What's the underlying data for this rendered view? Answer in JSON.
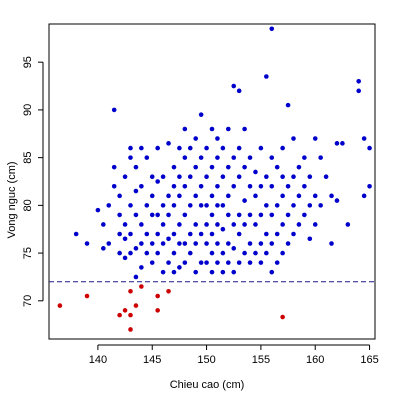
{
  "chart_data": {
    "type": "scatter",
    "title": "",
    "xlabel": "Chieu cao (cm)",
    "ylabel": "Vong nguc (cm)",
    "xlim": [
      135.5,
      165.5
    ],
    "ylim": [
      66,
      99
    ],
    "x_ticks": [
      140,
      145,
      150,
      155,
      160,
      165
    ],
    "y_ticks": [
      70,
      75,
      80,
      85,
      90,
      95
    ],
    "x_tick_labels": [
      "140",
      "145",
      "150",
      "155",
      "160",
      "165"
    ],
    "y_tick_labels": [
      "70",
      "75",
      "80",
      "85",
      "90",
      "95"
    ],
    "grid": false,
    "threshold_line": {
      "y": 72,
      "style": "dashed",
      "color": "#1a1a8c"
    },
    "colors": {
      "above": "#0000cc",
      "below": "#cc0000",
      "axes": "#000000"
    },
    "series": [
      {
        "group": "above",
        "color": "#0000cc",
        "points": [
          [
            138,
            77
          ],
          [
            139,
            76
          ],
          [
            140,
            79.5
          ],
          [
            140.5,
            75.5
          ],
          [
            140.5,
            78
          ],
          [
            141,
            76
          ],
          [
            141,
            80
          ],
          [
            141.5,
            82
          ],
          [
            141.5,
            84
          ],
          [
            141.5,
            90
          ],
          [
            142,
            75
          ],
          [
            142,
            77
          ],
          [
            142,
            79
          ],
          [
            142,
            81
          ],
          [
            142.5,
            74.5
          ],
          [
            142.5,
            76.5
          ],
          [
            142.5,
            78
          ],
          [
            142.5,
            83
          ],
          [
            143,
            75
          ],
          [
            143,
            77
          ],
          [
            143,
            80
          ],
          [
            143,
            85
          ],
          [
            143,
            86
          ],
          [
            143.5,
            72.5
          ],
          [
            143.5,
            75.5
          ],
          [
            143.5,
            79
          ],
          [
            143.5,
            81.5
          ],
          [
            143.5,
            84
          ],
          [
            144,
            73.5
          ],
          [
            144,
            76
          ],
          [
            144,
            78
          ],
          [
            144,
            82
          ],
          [
            144,
            86
          ],
          [
            144.5,
            75
          ],
          [
            144.5,
            77
          ],
          [
            144.5,
            80
          ],
          [
            144.5,
            85
          ],
          [
            145,
            74
          ],
          [
            145,
            76
          ],
          [
            145,
            79
          ],
          [
            145,
            81
          ],
          [
            145,
            83
          ],
          [
            145.5,
            75
          ],
          [
            145.5,
            77
          ],
          [
            145.5,
            79
          ],
          [
            145.5,
            82.5
          ],
          [
            145.5,
            86
          ],
          [
            146,
            73
          ],
          [
            146,
            76
          ],
          [
            146,
            78
          ],
          [
            146,
            80
          ],
          [
            146,
            83
          ],
          [
            146.5,
            74
          ],
          [
            146.5,
            76.5
          ],
          [
            146.5,
            79
          ],
          [
            146.5,
            81
          ],
          [
            146.5,
            86.5
          ],
          [
            147,
            73
          ],
          [
            147,
            75
          ],
          [
            147,
            77
          ],
          [
            147,
            80
          ],
          [
            147,
            82
          ],
          [
            147,
            84
          ],
          [
            147.5,
            73.5
          ],
          [
            147.5,
            76
          ],
          [
            147.5,
            78
          ],
          [
            147.5,
            81
          ],
          [
            147.5,
            83
          ],
          [
            147.5,
            86
          ],
          [
            148,
            74
          ],
          [
            148,
            76
          ],
          [
            148,
            79
          ],
          [
            148,
            82
          ],
          [
            148,
            85
          ],
          [
            148,
            88
          ],
          [
            148.5,
            75
          ],
          [
            148.5,
            77
          ],
          [
            148.5,
            80
          ],
          [
            148.5,
            83
          ],
          [
            148.5,
            86
          ],
          [
            149,
            73
          ],
          [
            149,
            76
          ],
          [
            149,
            78
          ],
          [
            149,
            81
          ],
          [
            149,
            84
          ],
          [
            149,
            87
          ],
          [
            149.5,
            74
          ],
          [
            149.5,
            77
          ],
          [
            149.5,
            80
          ],
          [
            149.5,
            82
          ],
          [
            149.5,
            85
          ],
          [
            149.5,
            89.5
          ],
          [
            150,
            74
          ],
          [
            150,
            76
          ],
          [
            150,
            78
          ],
          [
            150,
            80
          ],
          [
            150,
            83
          ],
          [
            150,
            86
          ],
          [
            150.5,
            73
          ],
          [
            150.5,
            75
          ],
          [
            150.5,
            77
          ],
          [
            150.5,
            79
          ],
          [
            150.5,
            81
          ],
          [
            150.5,
            84
          ],
          [
            150.5,
            88
          ],
          [
            151,
            74
          ],
          [
            151,
            76
          ],
          [
            151,
            78
          ],
          [
            151,
            80
          ],
          [
            151,
            82
          ],
          [
            151,
            85
          ],
          [
            151,
            87
          ],
          [
            151.5,
            73
          ],
          [
            151.5,
            75
          ],
          [
            151.5,
            77.5
          ],
          [
            151.5,
            80
          ],
          [
            151.5,
            83
          ],
          [
            151.5,
            86
          ],
          [
            152,
            74
          ],
          [
            152,
            76
          ],
          [
            152,
            79
          ],
          [
            152,
            81
          ],
          [
            152,
            84
          ],
          [
            152,
            88
          ],
          [
            152.5,
            73
          ],
          [
            152.5,
            75.5
          ],
          [
            152.5,
            78
          ],
          [
            152.5,
            82
          ],
          [
            152.5,
            85
          ],
          [
            152.5,
            92.5
          ],
          [
            153,
            74
          ],
          [
            153,
            77
          ],
          [
            153,
            79
          ],
          [
            153,
            83
          ],
          [
            153,
            86
          ],
          [
            153,
            92
          ],
          [
            153.5,
            75
          ],
          [
            153.5,
            78
          ],
          [
            153.5,
            80.5
          ],
          [
            153.5,
            84
          ],
          [
            153.5,
            88
          ],
          [
            154,
            74
          ],
          [
            154,
            76
          ],
          [
            154,
            79
          ],
          [
            154,
            82
          ],
          [
            154,
            85
          ],
          [
            154.5,
            75
          ],
          [
            154.5,
            78
          ],
          [
            154.5,
            81
          ],
          [
            154.5,
            83.5
          ],
          [
            155,
            74
          ],
          [
            155,
            76
          ],
          [
            155,
            79
          ],
          [
            155,
            82
          ],
          [
            155,
            86
          ],
          [
            155.5,
            75
          ],
          [
            155.5,
            77
          ],
          [
            155.5,
            80
          ],
          [
            155.5,
            83
          ],
          [
            155.5,
            93.5
          ],
          [
            156,
            73
          ],
          [
            156,
            76
          ],
          [
            156,
            79
          ],
          [
            156,
            82
          ],
          [
            156,
            85
          ],
          [
            156,
            98.5
          ],
          [
            156.5,
            74
          ],
          [
            156.5,
            77
          ],
          [
            156.5,
            80
          ],
          [
            156.5,
            84
          ],
          [
            157,
            75
          ],
          [
            157,
            78
          ],
          [
            157,
            81
          ],
          [
            157,
            83
          ],
          [
            157,
            86
          ],
          [
            157.5,
            76
          ],
          [
            157.5,
            79
          ],
          [
            157.5,
            82
          ],
          [
            157.5,
            90.5
          ],
          [
            158,
            77
          ],
          [
            158,
            80
          ],
          [
            158,
            83
          ],
          [
            158,
            87
          ],
          [
            158.5,
            78
          ],
          [
            158.5,
            81
          ],
          [
            158.5,
            84
          ],
          [
            159,
            79
          ],
          [
            159,
            82
          ],
          [
            159,
            85
          ],
          [
            159.5,
            76.5
          ],
          [
            159.5,
            80
          ],
          [
            159.5,
            83
          ],
          [
            160,
            78
          ],
          [
            160,
            81
          ],
          [
            160,
            87
          ],
          [
            160.5,
            80
          ],
          [
            161,
            83
          ],
          [
            161.5,
            81
          ],
          [
            162,
            80.5
          ],
          [
            162,
            86.5
          ],
          [
            163,
            78
          ],
          [
            164,
            92
          ],
          [
            164,
            93
          ],
          [
            164.5,
            81
          ],
          [
            165,
            82
          ],
          [
            165,
            86
          ],
          [
            164.5,
            87
          ],
          [
            162.5,
            86.5
          ],
          [
            160.5,
            85
          ],
          [
            161.5,
            76
          ]
        ]
      },
      {
        "group": "below",
        "color": "#cc0000",
        "points": [
          [
            136.5,
            69.5
          ],
          [
            139,
            70.5
          ],
          [
            142,
            68.5
          ],
          [
            142.5,
            69
          ],
          [
            143,
            71
          ],
          [
            143,
            68.5
          ],
          [
            143,
            67
          ],
          [
            143.5,
            69.5
          ],
          [
            144,
            71.5
          ],
          [
            145.5,
            70.5
          ],
          [
            145.5,
            69
          ],
          [
            146.5,
            71
          ],
          [
            157,
            68.3
          ]
        ]
      }
    ]
  }
}
